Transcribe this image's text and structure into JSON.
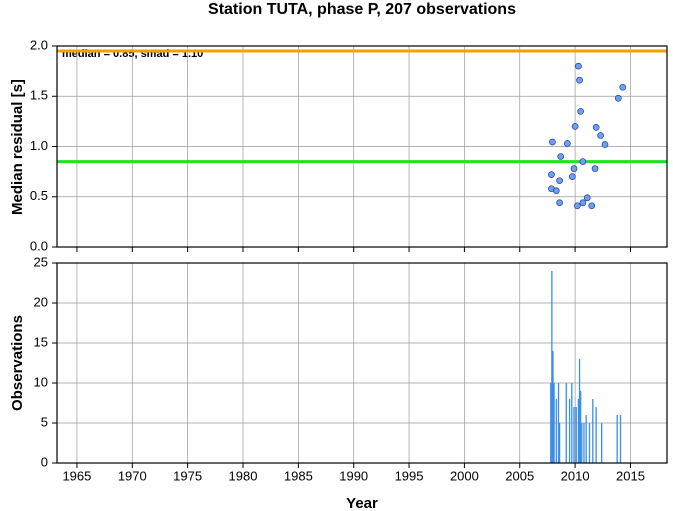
{
  "chart_data": [
    {
      "type": "scatter",
      "title": "Station TUTA, phase P, 207 observations",
      "ylabel": "Median residual [s]",
      "annotation": "median = 0.85, smad = 1.10",
      "x": [
        2007.95,
        2007.86,
        2007.86,
        2008.3,
        2008.6,
        2008.6,
        2008.7,
        2009.3,
        2009.75,
        2009.9,
        2010.0,
        2010.3,
        2010.4,
        2010.2,
        2010.5,
        2010.7,
        2010.7,
        2011.1,
        2011.5,
        2011.8,
        2011.9,
        2012.3,
        2012.7,
        2013.9,
        2014.3
      ],
      "values": [
        1.045,
        0.72,
        0.58,
        0.56,
        0.44,
        0.66,
        0.9,
        1.03,
        0.7,
        0.78,
        1.2,
        1.8,
        1.66,
        0.41,
        1.35,
        0.85,
        0.44,
        0.49,
        0.41,
        0.78,
        1.19,
        1.11,
        1.02,
        1.48,
        1.59
      ],
      "color": "#6f9ff0",
      "hlines": [
        {
          "value": 0.85,
          "color": "#22e022"
        },
        {
          "value": 1.95,
          "color": "#f5a000"
        }
      ],
      "xlim": [
        1963.2,
        2018.3
      ],
      "xticks": [
        1965,
        1970,
        1975,
        1980,
        1985,
        1990,
        1995,
        2000,
        2005,
        2010,
        2015
      ],
      "ylim": [
        0,
        2
      ],
      "yticks": [
        {
          "value": 0,
          "label": "0.0"
        },
        0.5,
        {
          "value": 1,
          "label": "1.0"
        },
        1.5,
        {
          "value": 2,
          "label": "2.0"
        }
      ],
      "grid": true
    },
    {
      "type": "bar",
      "xlabel": "Year",
      "ylabel": "Observations",
      "x": [
        2007.8,
        2007.9,
        2008.0,
        2008.1,
        2008.3,
        2008.5,
        2008.6,
        2009.2,
        2009.5,
        2009.7,
        2009.9,
        2010.1,
        2010.3,
        2010.4,
        2010.5,
        2010.6,
        2010.8,
        2011.0,
        2011.3,
        2011.6,
        2011.9,
        2012.4,
        2013.8,
        2014.1
      ],
      "values": [
        10,
        24,
        14,
        10,
        8,
        10,
        5,
        10,
        8,
        10,
        7,
        7,
        8,
        13,
        9,
        5,
        5,
        6,
        5,
        8,
        7,
        5,
        6,
        6
      ],
      "color": "#3a8ee6",
      "xlim": [
        1963.2,
        2018.3
      ],
      "xticks": [
        1965,
        1970,
        1975,
        1980,
        1985,
        1990,
        1995,
        2000,
        2005,
        2010,
        2015
      ],
      "ylim": [
        0,
        25
      ],
      "yticks": [
        0,
        5,
        10,
        15,
        20,
        25
      ],
      "grid": true
    }
  ]
}
